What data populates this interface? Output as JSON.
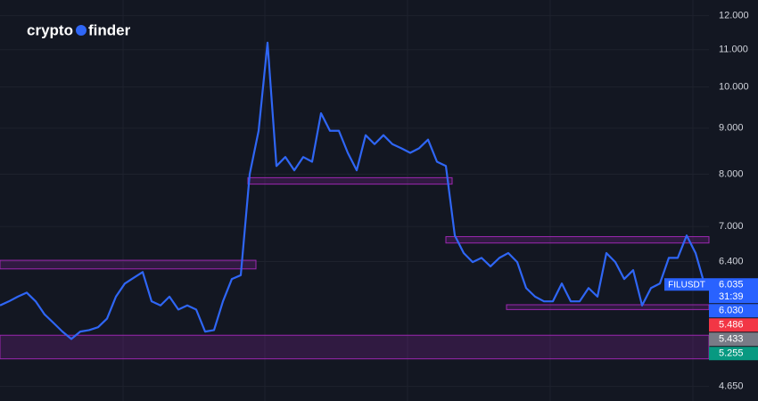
{
  "logo": [
    "crypto",
    "finder"
  ],
  "chart_data": {
    "type": "line",
    "symbol": "FILUSDT",
    "countdown": "31:39",
    "log_scale": true,
    "grid": true,
    "color": "#2f66f5",
    "values": [
      5.72,
      5.78,
      5.85,
      5.91,
      5.78,
      5.59,
      5.47,
      5.35,
      5.25,
      5.35,
      5.37,
      5.41,
      5.53,
      5.85,
      6.05,
      6.14,
      6.23,
      5.78,
      5.72,
      5.85,
      5.66,
      5.72,
      5.66,
      5.35,
      5.37,
      5.78,
      6.12,
      6.18,
      8.0,
      8.94,
      11.2,
      8.17,
      8.36,
      8.08,
      8.36,
      8.26,
      9.35,
      8.94,
      8.94,
      8.45,
      8.08,
      8.84,
      8.64,
      8.84,
      8.64,
      8.55,
      8.45,
      8.55,
      8.74,
      8.26,
      8.17,
      6.84,
      6.54,
      6.39,
      6.46,
      6.32,
      6.46,
      6.54,
      6.39,
      5.98,
      5.85,
      5.78,
      5.78,
      6.05,
      5.78,
      5.78,
      5.98,
      5.85,
      6.54,
      6.39,
      6.12,
      6.26,
      5.72,
      5.98,
      6.05,
      6.46,
      6.46,
      6.84,
      6.54,
      6.035
    ],
    "ylim": [
      4.48,
      12.49
    ],
    "yticks": [
      {
        "value": 12,
        "label": "12.000"
      },
      {
        "value": 11,
        "label": "11.000"
      },
      {
        "value": 10,
        "label": "10.000"
      },
      {
        "value": 9,
        "label": "9.000"
      },
      {
        "value": 8,
        "label": "8.000"
      },
      {
        "value": 7,
        "label": "7.000"
      },
      {
        "value": 6.4,
        "label": "6.400"
      },
      {
        "value": 4.65,
        "label": "4.650"
      }
    ],
    "zones": [
      {
        "x": [
          0,
          28.7
        ],
        "y": [
          6.28,
          6.42
        ]
      },
      {
        "x": [
          27.8,
          50.7
        ],
        "y": [
          7.8,
          7.93
        ]
      },
      {
        "x": [
          50,
          79.5
        ],
        "y": [
          6.71,
          6.82
        ]
      },
      {
        "x": [
          56.8,
          79.5
        ],
        "y": [
          5.66,
          5.73
        ]
      },
      {
        "x": [
          0,
          79.5
        ],
        "y": [
          4.99,
          5.3
        ]
      }
    ],
    "price_labels": [
      {
        "value": 6.035,
        "color": "#2962ff"
      },
      {
        "value": 6.03,
        "label": "6.030",
        "color": "#2962ff"
      },
      {
        "value": 5.486,
        "color": "#f23645"
      },
      {
        "value": 5.433,
        "color": "#787b86"
      },
      {
        "value": 5.255,
        "color": "#089981"
      }
    ]
  }
}
